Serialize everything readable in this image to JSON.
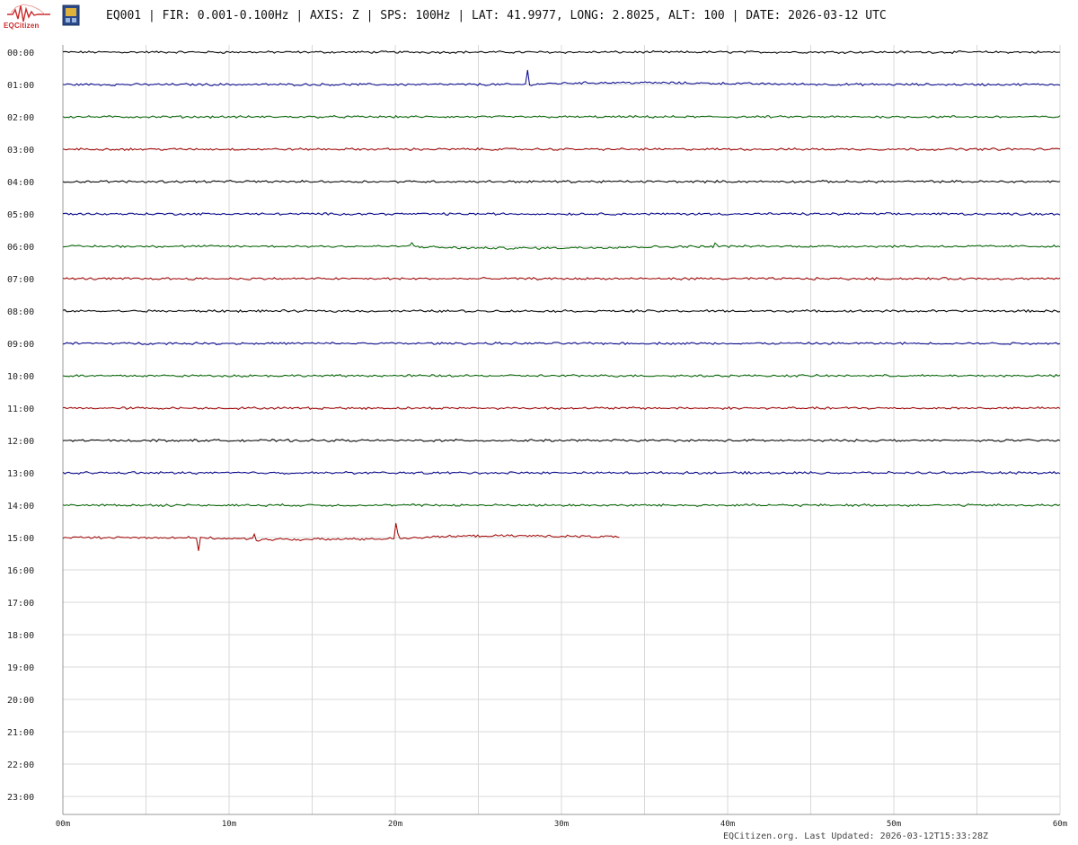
{
  "header": {
    "logo_text": "EQCitizen",
    "title": "EQ001 | FIR: 0.001-0.100Hz | AXIS: Z | SPS: 100Hz | LAT: 41.9977, LONG: 2.8025, ALT: 100 | DATE: 2026-03-12 UTC"
  },
  "footer": {
    "updated": "EQCitizen.org. Last Updated: 2026-03-12T15:33:28Z"
  },
  "colors": {
    "cycle": [
      "#000000",
      "#00008b",
      "#006400",
      "#a00000"
    ],
    "grid": "#d8d8d8",
    "logo": "#cc2a2a"
  },
  "chart_data": {
    "type": "line",
    "title": "",
    "xlabel": "",
    "ylabel": "",
    "xlim": [
      0,
      60
    ],
    "x_ticks": [
      "00m",
      "10m",
      "20m",
      "30m",
      "40m",
      "50m",
      "60m"
    ],
    "y_rows": [
      "00:00",
      "01:00",
      "02:00",
      "03:00",
      "04:00",
      "05:00",
      "06:00",
      "07:00",
      "08:00",
      "09:00",
      "10:00",
      "11:00",
      "12:00",
      "13:00",
      "14:00",
      "15:00",
      "16:00",
      "17:00",
      "18:00",
      "19:00",
      "20:00",
      "21:00",
      "22:00",
      "23:00"
    ],
    "grid": true,
    "series": [
      {
        "row": "00:00",
        "end_min": 60,
        "events": []
      },
      {
        "row": "01:00",
        "end_min": 60,
        "events": [
          {
            "t": 27.9,
            "amp": -2.0
          }
        ]
      },
      {
        "row": "02:00",
        "end_min": 60,
        "events": []
      },
      {
        "row": "03:00",
        "end_min": 60,
        "events": []
      },
      {
        "row": "04:00",
        "end_min": 60,
        "events": []
      },
      {
        "row": "05:00",
        "end_min": 60,
        "events": []
      },
      {
        "row": "06:00",
        "end_min": 60,
        "events": [
          {
            "t": 20.8,
            "amp": 2.6
          },
          {
            "t": 39.2,
            "amp": -0.4
          },
          {
            "t": 49.6,
            "amp": -0.35
          }
        ]
      },
      {
        "row": "07:00",
        "end_min": 60,
        "events": [
          {
            "t": 47.5,
            "amp": -0.2
          }
        ]
      },
      {
        "row": "08:00",
        "end_min": 60,
        "events": []
      },
      {
        "row": "09:00",
        "end_min": 60,
        "events": [
          {
            "t": 38.8,
            "amp": -0.6
          }
        ]
      },
      {
        "row": "10:00",
        "end_min": 60,
        "events": []
      },
      {
        "row": "11:00",
        "end_min": 60,
        "events": []
      },
      {
        "row": "12:00",
        "end_min": 60,
        "events": []
      },
      {
        "row": "13:00",
        "end_min": 60,
        "events": []
      },
      {
        "row": "14:00",
        "end_min": 60,
        "events": []
      },
      {
        "row": "15:00",
        "end_min": 33.5,
        "events": [
          {
            "t": 8.1,
            "amp": 2.0
          },
          {
            "t": 11.5,
            "amp": 1.2
          },
          {
            "t": 18.0,
            "amp": -0.6
          },
          {
            "t": 20.0,
            "amp": -2.2
          }
        ]
      }
    ]
  }
}
